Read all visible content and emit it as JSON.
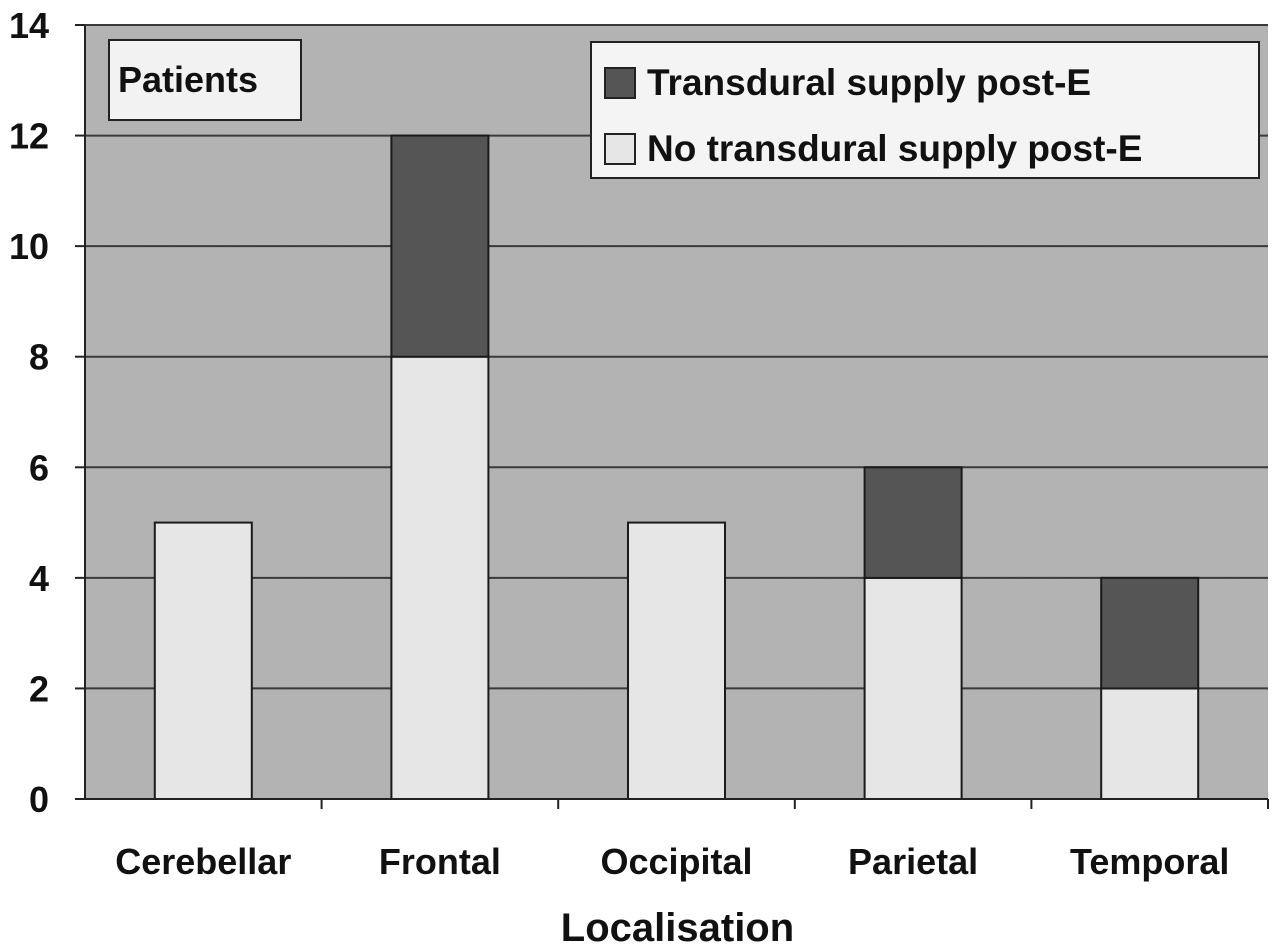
{
  "chart_data": {
    "type": "bar",
    "stacked": true,
    "title": "",
    "xlabel": "Localisation",
    "ylabel": "Patients",
    "ylim": [
      0,
      14
    ],
    "yticks": [
      "0",
      "2",
      "4",
      "6",
      "8",
      "10",
      "12",
      "14"
    ],
    "grid": true,
    "legend_position": "top-right",
    "categories": [
      "Cerebellar",
      "Frontal",
      "Occipital",
      "Parietal",
      "Temporal"
    ],
    "series": [
      {
        "name": "No transdural supply post-E",
        "color": "#e6e6e6",
        "values": [
          5,
          8,
          5,
          4,
          2
        ]
      },
      {
        "name": "Transdural supply post-E",
        "color": "#555555",
        "values": [
          0,
          4,
          0,
          2,
          2
        ]
      }
    ],
    "legend_order": [
      1,
      0
    ],
    "plot_background": "#b3b3b3"
  }
}
